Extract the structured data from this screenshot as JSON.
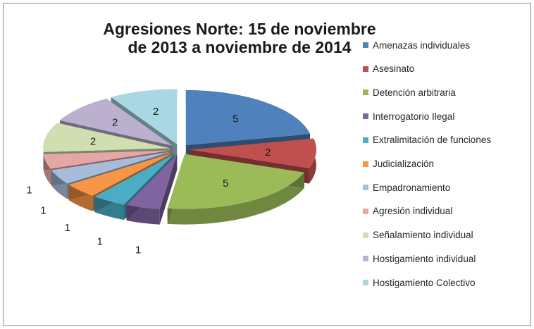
{
  "chart_data": {
    "type": "pie",
    "title_line1": "Agresiones  Norte: 15 de noviembre",
    "title_line2": "de 2013 a noviembre de 2014",
    "categories": [
      "Amenazas individuales",
      "Asesinato",
      "Detención arbitraria",
      "Interrogatorio Ilegal",
      "Extralimitación de funciones",
      "Judicialización",
      "Empadronamiento",
      "Agresión individual",
      "Señalamiento individual",
      "Hostigamiento individual",
      "Hostigamiento Colectivo"
    ],
    "values": [
      5,
      2,
      5,
      1,
      1,
      1,
      1,
      1,
      2,
      2,
      2
    ],
    "data_labels": [
      "5",
      "2",
      "5",
      "1",
      "1",
      "1",
      "1",
      "1",
      "2",
      "2",
      "2"
    ],
    "colors": [
      "#4f81bd",
      "#c0504d",
      "#9bbb59",
      "#8064a2",
      "#4bacc6",
      "#f79646",
      "#a6bcd9",
      "#e5a7a5",
      "#cfdfb0",
      "#bcb0cf",
      "#a9d8e4"
    ],
    "legend_position": "right",
    "style": "3d-exploded"
  }
}
